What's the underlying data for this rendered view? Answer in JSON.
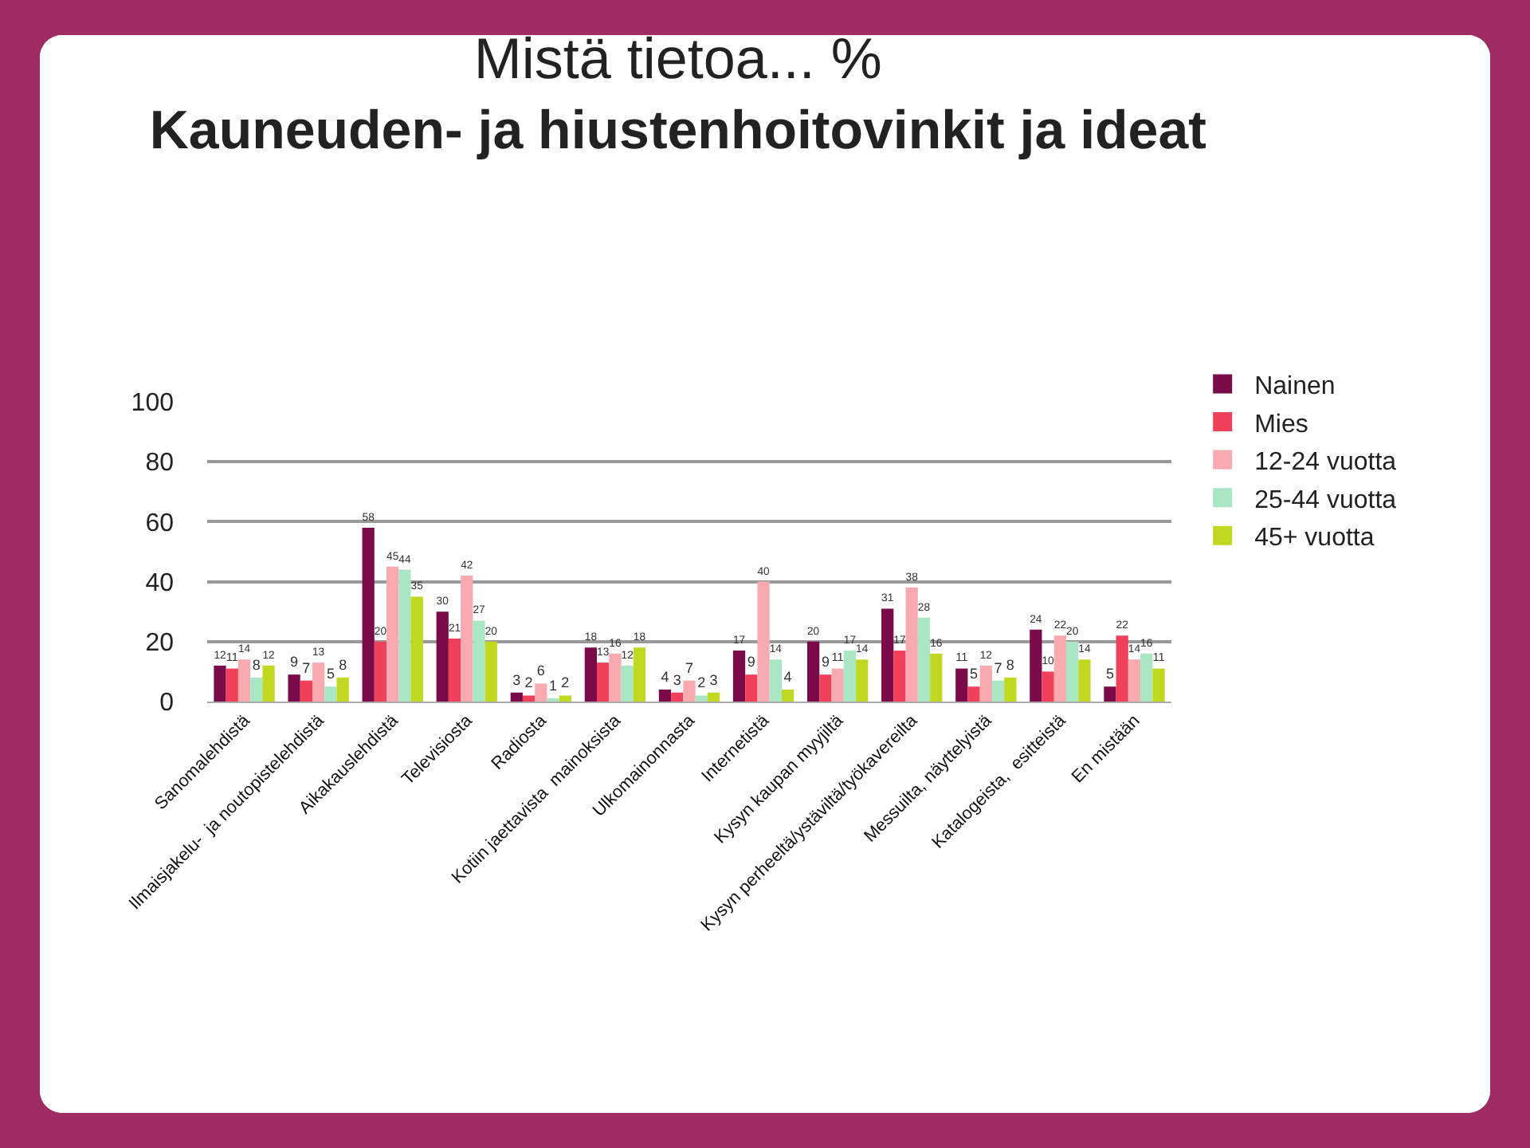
{
  "chart_data": {
    "type": "bar",
    "title": "Mistä tietoa... %",
    "subtitle": "Kauneuden- ja hiustenhoitovinkit ja ideat",
    "categories": [
      "Sanomalehdistä",
      "Ilmaisjakelu-  ja noutopistelehdistä",
      "Aikakauslehdistä",
      "Televisiosta",
      "Radiosta",
      "Kotiin jaettavista  mainoksista",
      "Ulkomainonnasta",
      "Internetistä",
      "Kysyn kaupan myyjiltä",
      "Kysyn perheeltä/ystäviltä/työkavereilta",
      "Messuilta, näyttelyistä",
      "Katalogeista,  esitteistä",
      "En mistään"
    ],
    "series": [
      {
        "name": "Nainen",
        "color": "#7b0a4a",
        "values": [
          12,
          9,
          58,
          30,
          3,
          18,
          4,
          17,
          20,
          31,
          11,
          24,
          5
        ]
      },
      {
        "name": "Mies",
        "color": "#f0405a",
        "values": [
          11,
          7,
          20,
          21,
          2,
          13,
          3,
          9,
          9,
          17,
          5,
          10,
          22
        ]
      },
      {
        "name": "12-24 vuotta",
        "color": "#f8aab0",
        "values": [
          14,
          13,
          45,
          42,
          6,
          16,
          7,
          40,
          11,
          38,
          12,
          22,
          14
        ]
      },
      {
        "name": "25-44 vuotta",
        "color": "#a8e6c4",
        "values": [
          8,
          5,
          44,
          27,
          1,
          12,
          2,
          14,
          17,
          28,
          7,
          20,
          16
        ]
      },
      {
        "name": "45+ vuotta",
        "color": "#c0d820",
        "values": [
          12,
          8,
          35,
          20,
          2,
          18,
          3,
          4,
          14,
          16,
          8,
          14,
          11
        ]
      }
    ],
    "ylim": [
      0,
      100
    ],
    "yticks": [
      0,
      20,
      40,
      60,
      80,
      100
    ],
    "grid": "y",
    "legend": "right",
    "data_labels": true
  }
}
